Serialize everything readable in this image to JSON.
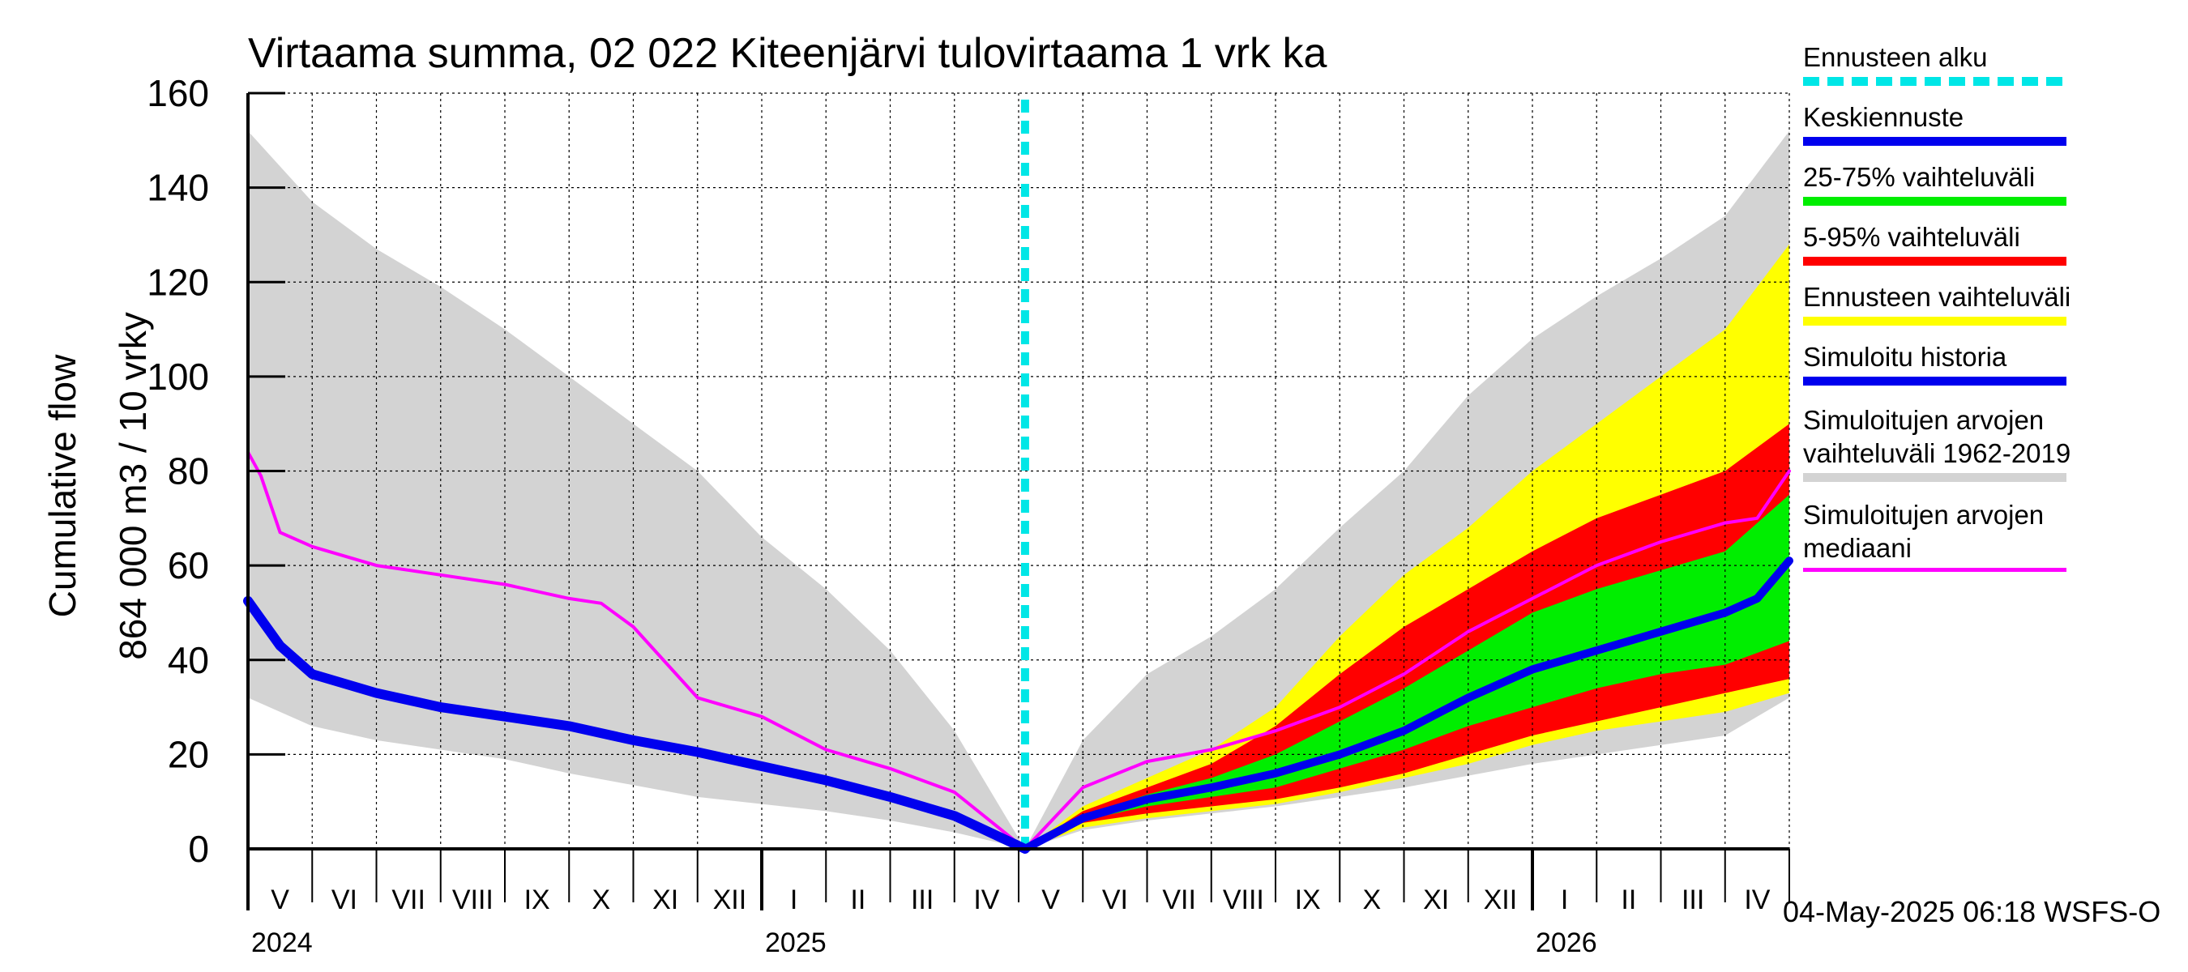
{
  "title": "Virtaama summa, 02 022 Kiteenjärvi tulovirtaama 1 vrk ka",
  "ylabel_lines": [
    "Cumulative flow",
    "864 000 m3 / 10 vrky"
  ],
  "footer": "04-May-2025 06:18 WSFS-O",
  "legend": [
    {
      "key": "ennusteen_alku",
      "lines": [
        "Ennusteen alku"
      ],
      "color": "#00e6e6",
      "style": "dashed"
    },
    {
      "key": "keskiennuste",
      "lines": [
        "Keskiennuste"
      ],
      "color": "#0000ee",
      "style": "solid"
    },
    {
      "key": "p25_75",
      "lines": [
        "25-75% vaihteluväli"
      ],
      "color": "#00ee00",
      "style": "solid"
    },
    {
      "key": "p5_95",
      "lines": [
        "5-95% vaihteluväli"
      ],
      "color": "#ff0000",
      "style": "solid"
    },
    {
      "key": "ennusteen_vaihteluvali",
      "lines": [
        "Ennusteen vaihteluväli"
      ],
      "color": "#ffff00",
      "style": "solid"
    },
    {
      "key": "simuloitu_historia",
      "lines": [
        "Simuloitu historia"
      ],
      "color": "#0000ee",
      "style": "solid"
    },
    {
      "key": "sim_range",
      "lines": [
        "Simuloitujen arvojen",
        "vaihteluväli 1962-2019"
      ],
      "color": "#d3d3d3",
      "style": "solid"
    },
    {
      "key": "sim_median",
      "lines": [
        "Simuloitujen arvojen",
        "mediaani"
      ],
      "color": "#ff00ff",
      "style": "solid"
    }
  ],
  "chart_data": {
    "type": "area",
    "title": "Virtaama summa, 02 022 Kiteenjärvi tulovirtaama 1 vrk ka",
    "ylabel": "Cumulative flow 864 000 m3 / 10 vrky",
    "ylim": [
      0,
      160
    ],
    "yticks": [
      0,
      20,
      40,
      60,
      80,
      100,
      120,
      140,
      160
    ],
    "grid": true,
    "x_unit": "months since 2024-04-01",
    "xlim": [
      1,
      25
    ],
    "forecast_start": 13.1,
    "month_labels": [
      "V",
      "VI",
      "VII",
      "VIII",
      "IX",
      "X",
      "XI",
      "XII",
      "I",
      "II",
      "III",
      "IV",
      "V",
      "VI",
      "VII",
      "VIII",
      "IX",
      "X",
      "XI",
      "XII",
      "I",
      "II",
      "III",
      "IV"
    ],
    "year_labels": [
      {
        "label": "2024",
        "x": 1
      },
      {
        "label": "2025",
        "x": 9
      },
      {
        "label": "2026",
        "x": 21
      }
    ],
    "series": [
      {
        "name": "Simuloitujen arvojen vaihteluväli 1962-2019",
        "kind": "band",
        "color": "#d3d3d3",
        "x": [
          1,
          2,
          3,
          4,
          5,
          6,
          7,
          8,
          9,
          10,
          11,
          12,
          13.1,
          14,
          15,
          16,
          17,
          18,
          19,
          20,
          21,
          22,
          23,
          24,
          25
        ],
        "upper": [
          152,
          137,
          127,
          119,
          110,
          100,
          90,
          80,
          66,
          55,
          42,
          25,
          0,
          23,
          37,
          45,
          55,
          68,
          80,
          96,
          108,
          117,
          125,
          134,
          152
        ],
        "lower": [
          32,
          26,
          23,
          21,
          19,
          16,
          13.5,
          11,
          9.5,
          8,
          6,
          3.5,
          0,
          4,
          6,
          7.5,
          9,
          11,
          13,
          15.5,
          18,
          20,
          22,
          24,
          32
        ]
      },
      {
        "name": "Ennusteen vaihteluväli",
        "kind": "band",
        "color": "#ffff00",
        "x": [
          13.1,
          14,
          15,
          16,
          17,
          18,
          19,
          20,
          21,
          22,
          23,
          24,
          25
        ],
        "upper": [
          0,
          9,
          15,
          21,
          30,
          45,
          58,
          68,
          80,
          90,
          100,
          110,
          128
        ],
        "lower": [
          0,
          4.5,
          6.5,
          8,
          9.5,
          12,
          15,
          18,
          22,
          25,
          27,
          29,
          33
        ]
      },
      {
        "name": "5-95% vaihteluväli",
        "kind": "band",
        "color": "#ff0000",
        "x": [
          13.1,
          14,
          15,
          16,
          17,
          18,
          19,
          20,
          21,
          22,
          23,
          24,
          25
        ],
        "upper": [
          0,
          8,
          13,
          18,
          26,
          37,
          47,
          55,
          63,
          70,
          75,
          80,
          90
        ],
        "lower": [
          0,
          5.5,
          7.5,
          9,
          10.5,
          13,
          16,
          20,
          24,
          27,
          30,
          33,
          36
        ]
      },
      {
        "name": "25-75% vaihteluväli",
        "kind": "band",
        "color": "#00ee00",
        "x": [
          13.1,
          14,
          15,
          16,
          17,
          18,
          19,
          20,
          21,
          22,
          23,
          24,
          25
        ],
        "upper": [
          0,
          7,
          11.5,
          15,
          20,
          27,
          34,
          42,
          50,
          55,
          59,
          63,
          75
        ],
        "lower": [
          0,
          6,
          9,
          11,
          13,
          17,
          21,
          26,
          30,
          34,
          37,
          39,
          44
        ]
      },
      {
        "name": "Simuloitujen arvojen mediaani",
        "kind": "line",
        "color": "#ff00ff",
        "width": 4,
        "x": [
          1,
          1.2,
          1.5,
          2,
          3,
          4,
          5,
          6,
          6.5,
          7,
          8,
          9,
          10,
          11,
          12,
          13.1,
          14,
          15,
          16,
          17,
          18,
          19,
          20,
          21,
          22,
          23,
          24,
          24.5,
          25
        ],
        "y": [
          84,
          79,
          67,
          64,
          60,
          58,
          56,
          53,
          52,
          47,
          32,
          28,
          21,
          17,
          12,
          0,
          13,
          18.5,
          21,
          25,
          30,
          37,
          46,
          53,
          60,
          65,
          69,
          70,
          80
        ]
      },
      {
        "name": "Simuloitu historia",
        "kind": "line",
        "color": "#0000ee",
        "width": 12,
        "x": [
          1,
          1.5,
          2,
          3,
          4,
          5,
          6,
          7,
          8,
          9,
          10,
          11,
          12,
          13.1
        ],
        "y": [
          52.5,
          43,
          37,
          33,
          30,
          28,
          26,
          23,
          20.5,
          17.5,
          14.5,
          11,
          7,
          0
        ]
      },
      {
        "name": "Keskiennuste",
        "kind": "line",
        "color": "#0000ee",
        "width": 10,
        "x": [
          13.1,
          14,
          15,
          16,
          17,
          18,
          19,
          20,
          21,
          22,
          23,
          24,
          24.5,
          25
        ],
        "y": [
          0,
          6.5,
          10.5,
          13,
          16,
          20,
          25,
          32,
          38,
          42,
          46,
          50,
          53,
          61
        ]
      }
    ]
  }
}
